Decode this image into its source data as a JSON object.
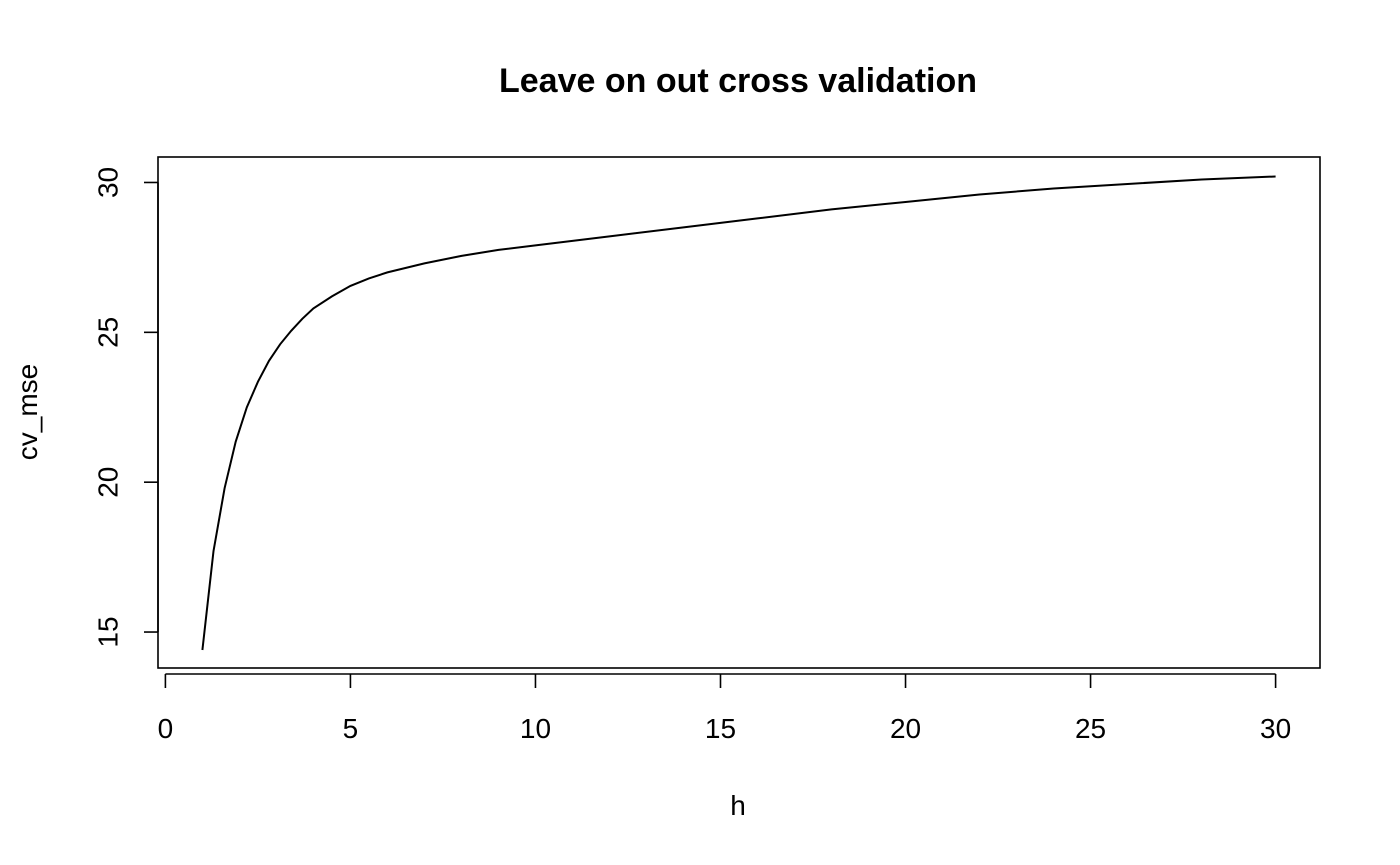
{
  "chart_data": {
    "type": "line",
    "title": "Leave on out cross validation",
    "xlabel": "h",
    "ylabel": "cv_mse",
    "xlim": [
      -0.2,
      31.2
    ],
    "ylim": [
      13.8,
      30.85
    ],
    "x_ticks": [
      0,
      5,
      10,
      15,
      20,
      25,
      30
    ],
    "y_ticks": [
      15,
      20,
      25,
      30
    ],
    "grid": false,
    "legend": "none",
    "line_color": "#000000",
    "series": [
      {
        "x": [
          1.0,
          1.3,
          1.6,
          1.9,
          2.2,
          2.5,
          2.8,
          3.1,
          3.4,
          3.7,
          4.0,
          4.5,
          5.0,
          5.5,
          6.0,
          7.0,
          8.0,
          9.0,
          10.0,
          12.0,
          14.0,
          16.0,
          18.0,
          20.0,
          22.0,
          24.0,
          26.0,
          28.0,
          30.0
        ],
        "y": [
          14.4,
          17.7,
          19.8,
          21.35,
          22.5,
          23.35,
          24.05,
          24.6,
          25.05,
          25.45,
          25.8,
          26.2,
          26.55,
          26.8,
          27.0,
          27.3,
          27.55,
          27.75,
          27.9,
          28.2,
          28.5,
          28.8,
          29.1,
          29.35,
          29.6,
          29.8,
          29.95,
          30.1,
          30.2
        ]
      }
    ]
  }
}
